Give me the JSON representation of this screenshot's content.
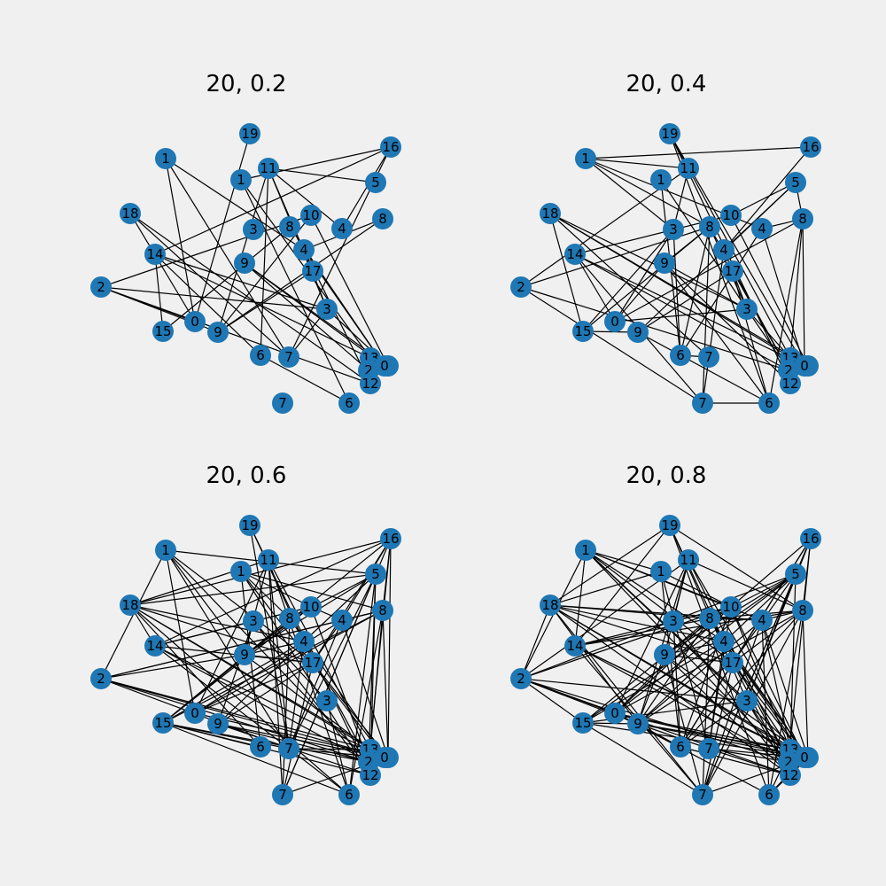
{
  "panels": [
    {
      "title": "20, 0.2"
    },
    {
      "title": "20, 0.4"
    },
    {
      "title": "20, 0.6"
    },
    {
      "title": "20, 0.8"
    }
  ],
  "node_labels": [
    "1",
    "19",
    "16",
    "11",
    "1",
    "5",
    "18",
    "3",
    "8",
    "10",
    "4",
    "8",
    "14",
    "4",
    "9",
    "17",
    "2",
    "3",
    "0",
    "9",
    "15",
    "6",
    "7",
    "13",
    "5",
    "0",
    "2",
    "12",
    "7",
    "6"
  ],
  "edge_density": [
    0.2,
    0.4,
    0.6,
    0.8
  ],
  "colors": {
    "node": "#1f77b4",
    "edge": "#000000",
    "background": "#f0f0f0"
  }
}
